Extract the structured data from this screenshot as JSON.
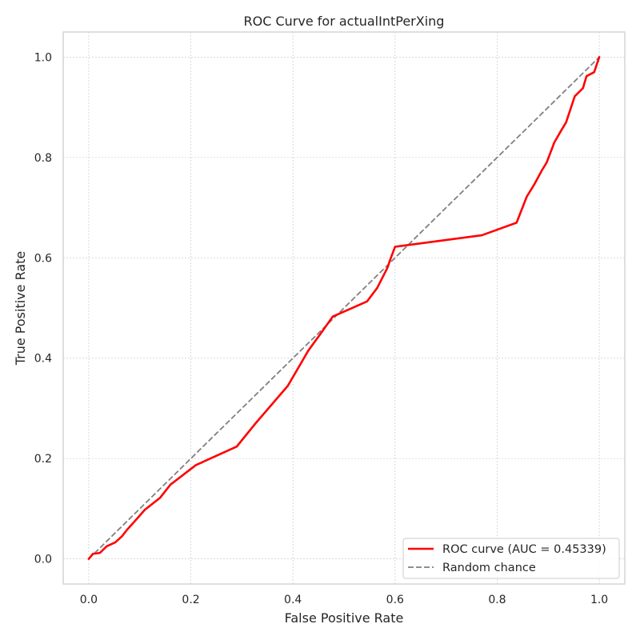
{
  "chart_data": {
    "type": "line",
    "title": "ROC Curve for actualIntPerXing",
    "xlabel": "False Positive Rate",
    "ylabel": "True Positive Rate",
    "xlim": [
      -0.05,
      1.05
    ],
    "ylim": [
      -0.05,
      1.05
    ],
    "x_ticks": [
      0.0,
      0.2,
      0.4,
      0.6,
      0.8,
      1.0
    ],
    "y_ticks": [
      0.0,
      0.2,
      0.4,
      0.6,
      0.8,
      1.0
    ],
    "x_tick_labels": [
      "0.0",
      "0.2",
      "0.4",
      "0.6",
      "0.8",
      "1.0"
    ],
    "y_tick_labels": [
      "0.0",
      "0.2",
      "0.4",
      "0.6",
      "0.8",
      "1.0"
    ],
    "grid": true,
    "legend_position": "lower-right",
    "series": [
      {
        "name": "ROC curve (AUC = 0.45339)",
        "color": "#ff0000",
        "style": "solid",
        "x": [
          0.0,
          0.008,
          0.022,
          0.035,
          0.052,
          0.065,
          0.075,
          0.09,
          0.11,
          0.14,
          0.16,
          0.21,
          0.29,
          0.325,
          0.39,
          0.43,
          0.455,
          0.478,
          0.545,
          0.565,
          0.585,
          0.59,
          0.6,
          0.77,
          0.838,
          0.858,
          0.872,
          0.888,
          0.897,
          0.912,
          0.925,
          0.935,
          0.952,
          0.968,
          0.975,
          0.99,
          1.0
        ],
        "y": [
          0.0,
          0.01,
          0.012,
          0.025,
          0.033,
          0.045,
          0.058,
          0.075,
          0.098,
          0.122,
          0.148,
          0.187,
          0.224,
          0.268,
          0.345,
          0.415,
          0.45,
          0.483,
          0.513,
          0.54,
          0.58,
          0.595,
          0.622,
          0.645,
          0.67,
          0.722,
          0.745,
          0.775,
          0.79,
          0.83,
          0.853,
          0.87,
          0.922,
          0.938,
          0.962,
          0.97,
          1.0
        ]
      },
      {
        "name": "Random chance",
        "color": "#808080",
        "style": "dashed",
        "x": [
          0.0,
          1.0
        ],
        "y": [
          0.0,
          1.0
        ]
      }
    ]
  }
}
